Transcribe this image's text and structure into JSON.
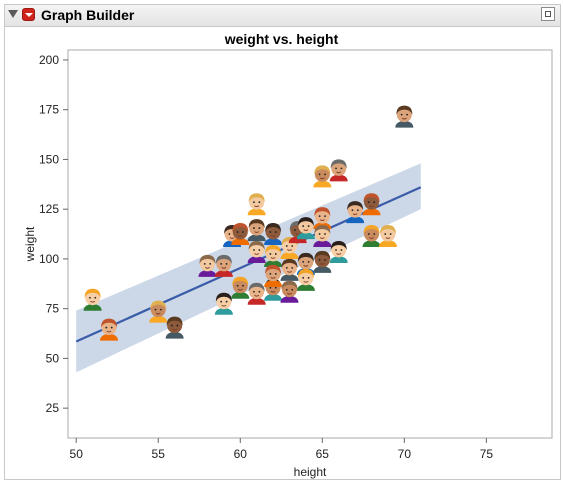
{
  "window": {
    "title": "Graph Builder"
  },
  "chart_data": {
    "type": "scatter",
    "title": "weight vs. height",
    "xlabel": "height",
    "ylabel": "weight",
    "xlim": [
      49.5,
      79
    ],
    "ylim": [
      10,
      205
    ],
    "x_ticks": [
      50,
      55,
      60,
      65,
      70,
      75
    ],
    "y_ticks": [
      25,
      50,
      75,
      100,
      125,
      150,
      175,
      200
    ],
    "grid": false,
    "marker": "person-face-icon",
    "points": [
      {
        "x": 51,
        "y": 80
      },
      {
        "x": 52,
        "y": 65
      },
      {
        "x": 55,
        "y": 74
      },
      {
        "x": 56,
        "y": 66
      },
      {
        "x": 58,
        "y": 97
      },
      {
        "x": 59,
        "y": 97
      },
      {
        "x": 59,
        "y": 78
      },
      {
        "x": 59.5,
        "y": 112
      },
      {
        "x": 60,
        "y": 86
      },
      {
        "x": 60,
        "y": 113
      },
      {
        "x": 61,
        "y": 128
      },
      {
        "x": 61,
        "y": 115
      },
      {
        "x": 61,
        "y": 104
      },
      {
        "x": 61,
        "y": 83
      },
      {
        "x": 62,
        "y": 85
      },
      {
        "x": 62,
        "y": 113
      },
      {
        "x": 62,
        "y": 102
      },
      {
        "x": 62,
        "y": 92
      },
      {
        "x": 63,
        "y": 106
      },
      {
        "x": 63,
        "y": 95
      },
      {
        "x": 63,
        "y": 84
      },
      {
        "x": 63.5,
        "y": 114
      },
      {
        "x": 64,
        "y": 116
      },
      {
        "x": 64,
        "y": 98
      },
      {
        "x": 64,
        "y": 90
      },
      {
        "x": 65,
        "y": 121
      },
      {
        "x": 65,
        "y": 142
      },
      {
        "x": 65,
        "y": 99
      },
      {
        "x": 65,
        "y": 112
      },
      {
        "x": 66,
        "y": 145
      },
      {
        "x": 66,
        "y": 104
      },
      {
        "x": 67,
        "y": 124
      },
      {
        "x": 68,
        "y": 112
      },
      {
        "x": 68,
        "y": 128
      },
      {
        "x": 69,
        "y": 112
      },
      {
        "x": 70,
        "y": 172
      }
    ],
    "fit_line": {
      "type": "linear",
      "x_range": [
        50,
        71
      ],
      "y_at_start": 58.5,
      "y_at_end": 136,
      "color": "#3a5ca8"
    },
    "confidence_band": {
      "y_lower": [
        43,
        125
      ],
      "y_upper": [
        74,
        148
      ],
      "color": "#c6d3e6"
    }
  }
}
